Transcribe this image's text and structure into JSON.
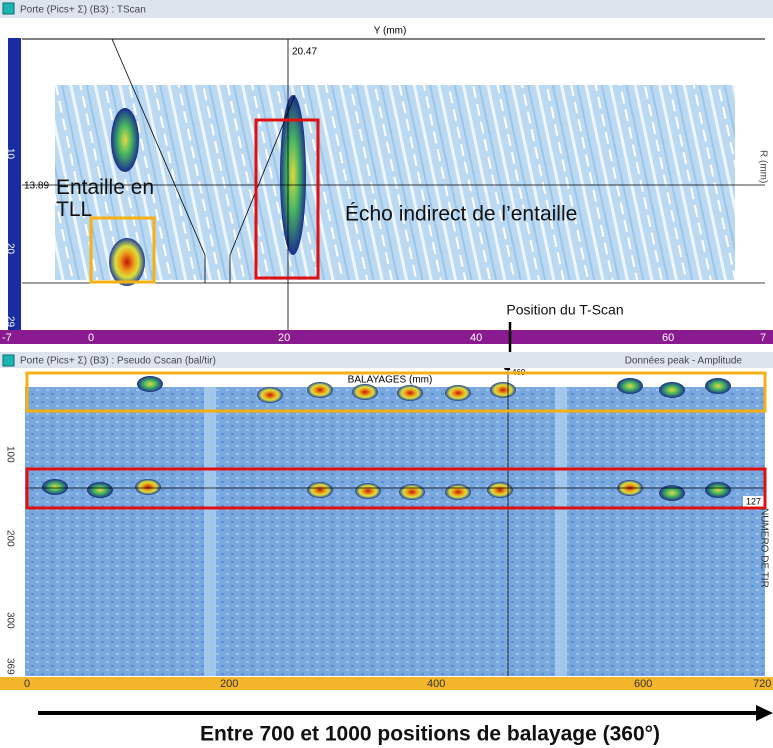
{
  "tscan_window": {
    "title": "Porte (Pics+ Σ) (B3) : TScan",
    "y_axis_label": "Y (mm)",
    "cursor_y": "20.47",
    "cursor_x": "13.89",
    "right_label": "R (mm)",
    "left_ticks": [
      "10",
      "20",
      "29"
    ],
    "bottom_ticks": [
      "-7",
      "0",
      "20",
      "40",
      "60",
      "7"
    ],
    "annotations": {
      "notch": "Entaille en TLL",
      "indirect_echo": "Écho indirect de l’entaille"
    }
  },
  "tscan_position_label": "Position du T-Scan",
  "cscan_window": {
    "title": "Porte (Pics+ Σ) (B3) : Pseudo Cscan (bal/tir)",
    "right_title": "Données peak - Amplitude",
    "x_axis_label": "BALAYAGES (mm)",
    "right_label": "NUMERO DE TIR",
    "left_ticks": [
      "100",
      "200",
      "300",
      "369"
    ],
    "bottom_ticks": [
      "0",
      "200",
      "400",
      "600",
      "720"
    ],
    "cursor_scan": "469",
    "cursor_shot": "127"
  },
  "caption": "Entre 700 et 1000 positions de balayage (360°)"
}
